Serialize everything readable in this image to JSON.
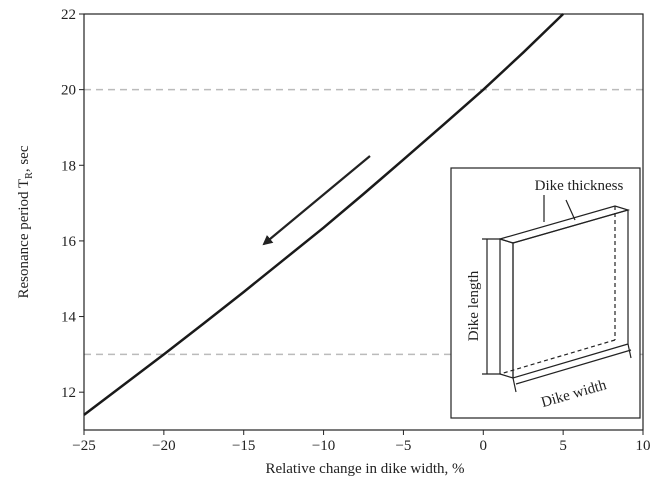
{
  "chart_data": {
    "type": "line",
    "xlabel": "Relative change in dike width, %",
    "ylabel": {
      "text": "Resonance period T",
      "sub": "R",
      "tail": ", sec"
    },
    "x": [
      -25,
      -22.5,
      -20,
      -17.5,
      -15,
      -12.5,
      -10,
      -7.5,
      -5,
      -2.5,
      0,
      2.5,
      5
    ],
    "series": [
      {
        "color": "#1a1a1a",
        "values": [
          11.4,
          12.2,
          13.0,
          13.82,
          14.65,
          15.5,
          16.35,
          17.24,
          18.15,
          19.07,
          20.0,
          20.98,
          22.0
        ]
      }
    ],
    "xlim": [
      -25,
      10
    ],
    "ylim": [
      11,
      22
    ],
    "xticks": [
      {
        "value": -25,
        "label": "−25"
      },
      {
        "value": -20,
        "label": "−20"
      },
      {
        "value": -15,
        "label": "−15"
      },
      {
        "value": -10,
        "label": "−10"
      },
      {
        "value": -5,
        "label": "−5"
      },
      0,
      5,
      10
    ],
    "yticks": [
      12,
      14,
      16,
      18,
      20,
      22
    ],
    "reference_lines": [
      20,
      13
    ],
    "annotations": [
      "Dike thickness",
      "Dike length",
      "Dike width"
    ]
  }
}
